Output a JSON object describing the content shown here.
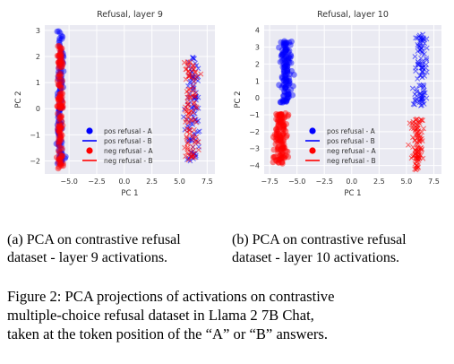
{
  "chart_data": [
    {
      "type": "scatter",
      "title": "Refusal, layer 9",
      "xlabel": "PC 1",
      "ylabel": "PC 2",
      "xlim": [
        -7.2,
        8.2
      ],
      "ylim": [
        -2.5,
        3.2
      ],
      "xticks": [
        "-5.0",
        "-2.5",
        "0.0",
        "2.5",
        "5.0",
        "7.5"
      ],
      "xtick_values": [
        -5.0,
        -2.5,
        0.0,
        2.5,
        5.0,
        7.5
      ],
      "yticks": [
        "-2",
        "-1",
        "0",
        "1",
        "2",
        "3"
      ],
      "ytick_values": [
        -2,
        -1,
        0,
        1,
        2,
        3
      ],
      "grid": true,
      "legend_position": "lower-right",
      "series": [
        {
          "name": "pos refusal - A",
          "marker": "circle",
          "color": "#0000ff",
          "clusters": [
            {
              "x": -5.8,
              "x_spread": 0.25,
              "y_range": [
                -2.2,
                3.0
              ]
            }
          ]
        },
        {
          "name": "pos refusal - B",
          "marker": "x",
          "color": "#0000ff",
          "clusters": [
            {
              "x": 6.2,
              "x_spread": 0.6,
              "y_range": [
                -2.0,
                2.0
              ]
            }
          ]
        },
        {
          "name": "neg refusal - A",
          "marker": "circle",
          "color": "#ff0000",
          "clusters": [
            {
              "x": -5.8,
              "x_spread": 0.25,
              "y_range": [
                -2.3,
                2.4
              ]
            }
          ]
        },
        {
          "name": "neg refusal - B",
          "marker": "x",
          "color": "#ff0000",
          "clusters": [
            {
              "x": 6.0,
              "x_spread": 0.6,
              "y_range": [
                -2.0,
                1.8
              ]
            }
          ]
        }
      ]
    },
    {
      "type": "scatter",
      "title": "Refusal, layer 10",
      "xlabel": "PC 1",
      "ylabel": "PC 2",
      "xlim": [
        -8.0,
        8.2
      ],
      "ylim": [
        -4.5,
        4.3
      ],
      "xticks": [
        "-7.5",
        "-5.0",
        "-2.5",
        "0.0",
        "2.5",
        "5.0",
        "7.5"
      ],
      "xtick_values": [
        -7.5,
        -5.0,
        -2.5,
        0.0,
        2.5,
        5.0,
        7.5
      ],
      "yticks": [
        "-4",
        "-3",
        "-2",
        "-1",
        "0",
        "1",
        "2",
        "3",
        "4"
      ],
      "ytick_values": [
        -4,
        -3,
        -2,
        -1,
        0,
        1,
        2,
        3,
        4
      ],
      "grid": true,
      "legend_position": "center",
      "series": [
        {
          "name": "pos refusal - A",
          "marker": "circle",
          "color": "#0000ff",
          "clusters": [
            {
              "x": -6.0,
              "x_spread": 0.45,
              "y_range": [
                -0.3,
                3.4
              ]
            }
          ]
        },
        {
          "name": "pos refusal - B",
          "marker": "x",
          "color": "#0000ff",
          "clusters": [
            {
              "x": 6.3,
              "x_spread": 0.55,
              "y_range": [
                -0.5,
                3.9
              ]
            }
          ]
        },
        {
          "name": "neg refusal - A",
          "marker": "circle",
          "color": "#ff0000",
          "clusters": [
            {
              "x": -6.5,
              "x_spread": 0.55,
              "y_range": [
                -3.9,
                -0.8
              ]
            }
          ]
        },
        {
          "name": "neg refusal - B",
          "marker": "x",
          "color": "#ff0000",
          "clusters": [
            {
              "x": 6.0,
              "x_spread": 0.5,
              "y_range": [
                -4.3,
                -1.2
              ]
            }
          ]
        }
      ]
    }
  ],
  "subcaptions": {
    "a": {
      "line1": "(a) PCA on contrastive refusal",
      "line2": "dataset - layer 9 activations."
    },
    "b": {
      "line1": "(b) PCA on contrastive refusal",
      "line2": "dataset - layer 10 activations."
    }
  },
  "caption": {
    "line1": "Figure 2: PCA projections of activations on contrastive",
    "line2": "multiple-choice refusal dataset in Llama 2 7B Chat,",
    "line3": "taken at the token position of the “A” or “B” answers."
  },
  "colors": {
    "plot_bg": "#eaeaf2",
    "grid": "#ffffff",
    "blue": "#0000ff",
    "red": "#ff0000"
  }
}
